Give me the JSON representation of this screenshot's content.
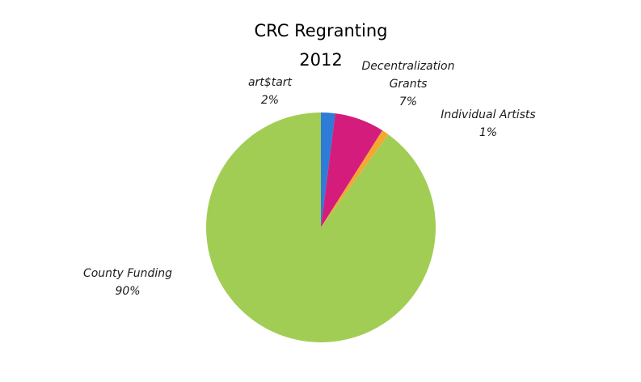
{
  "chart_data": {
    "type": "pie",
    "title": [
      "CRC Regranting",
      "2012"
    ],
    "start_angle_deg": 0,
    "direction": "clockwise",
    "legend": "none",
    "slices": [
      {
        "label": [
          "art$tart"
        ],
        "percent_label": "2%",
        "value": 2,
        "color": "#2E7BD8"
      },
      {
        "label": [
          "Decentralization",
          "Grants"
        ],
        "percent_label": "7%",
        "value": 7,
        "color": "#D41C7C"
      },
      {
        "label": [
          "Individual Artists"
        ],
        "percent_label": "1%",
        "value": 1,
        "color": "#F4A731"
      },
      {
        "label": [
          "County Funding"
        ],
        "percent_label": "90%",
        "value": 90,
        "color": "#A2CD55"
      }
    ]
  }
}
